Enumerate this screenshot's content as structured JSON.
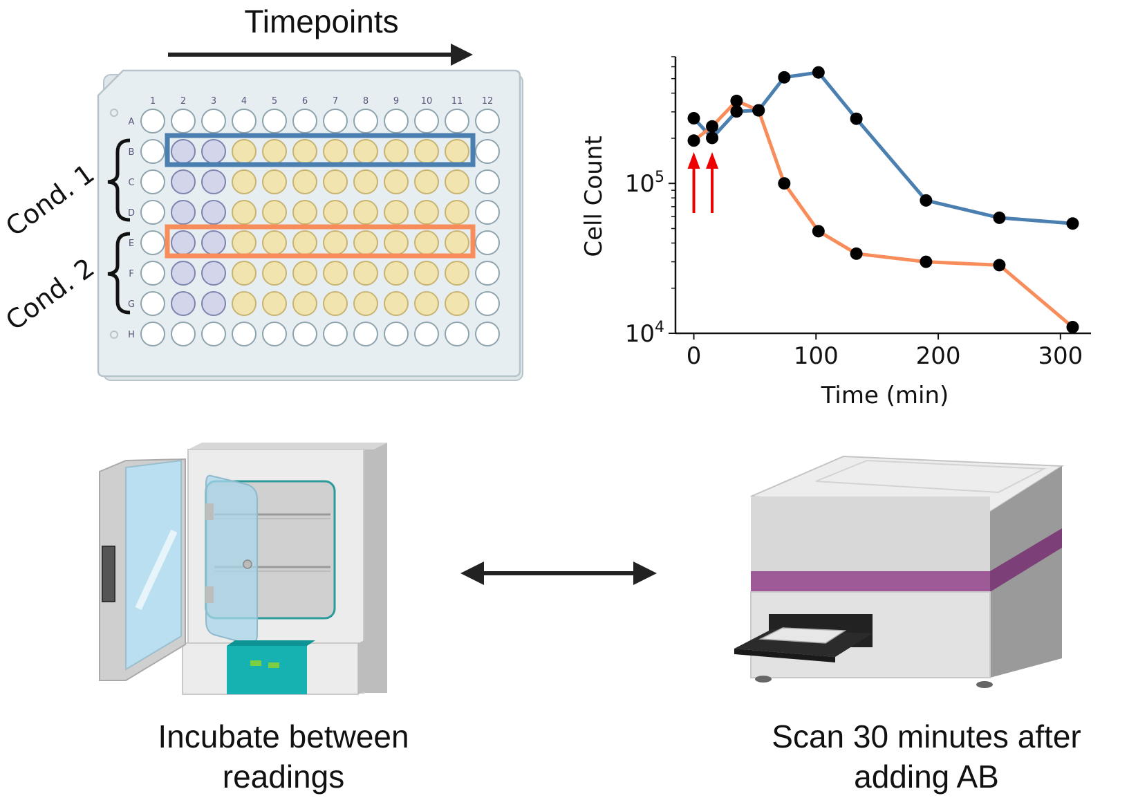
{
  "header": {
    "timepoints_label": "Timepoints"
  },
  "plate": {
    "columns": [
      "1",
      "2",
      "3",
      "4",
      "5",
      "6",
      "7",
      "8",
      "9",
      "10",
      "11",
      "12"
    ],
    "rows": [
      "A",
      "B",
      "C",
      "D",
      "E",
      "F",
      "G",
      "H"
    ],
    "colors": {
      "blank": "#ffffff",
      "control": "#d3d5eb",
      "sample": "#f2e4ae",
      "cond1_box": "#4a7fb0",
      "cond2_box": "#f88d5b",
      "plate_fill": "#e6eef2",
      "plate_edge": "#b8c4cb"
    },
    "highlights": [
      {
        "label": "Cond. 1",
        "rows": [
          "B",
          "C",
          "D"
        ],
        "boxed_row": "B"
      },
      {
        "label": "Cond. 2",
        "rows": [
          "E",
          "F",
          "G"
        ],
        "boxed_row": "E"
      }
    ]
  },
  "chart_data": {
    "type": "line",
    "xlabel": "Time (min)",
    "ylabel": "Cell Count",
    "yscale": "log",
    "xlim": [
      -15,
      325
    ],
    "ylim": [
      10000,
      700000
    ],
    "xticks": [
      0,
      100,
      200,
      300
    ],
    "yticks": [
      {
        "value": 10000,
        "base": "10",
        "exp": "4"
      },
      {
        "value": 100000,
        "base": "10",
        "exp": "5"
      }
    ],
    "series": [
      {
        "color": "#4a7fb0",
        "x": [
          0,
          15,
          35,
          53,
          74,
          102,
          133,
          190,
          250,
          310
        ],
        "y": [
          272000,
          201000,
          302000,
          307000,
          510000,
          550000,
          270000,
          77000,
          59000,
          54000
        ]
      },
      {
        "color": "#f88d5b",
        "x": [
          0,
          15,
          35,
          53,
          74,
          102,
          133,
          190,
          250,
          310
        ],
        "y": [
          193000,
          240000,
          355000,
          307000,
          100000,
          48000,
          34000,
          30000,
          28500,
          11000
        ]
      }
    ],
    "annotations": [
      {
        "type": "arrow",
        "x": 0,
        "color": "#ee0000"
      },
      {
        "type": "arrow",
        "x": 15,
        "color": "#ee0000"
      }
    ]
  },
  "captions": {
    "incubate": "Incubate between readings",
    "scan": "Scan 30 minutes after adding AB"
  }
}
